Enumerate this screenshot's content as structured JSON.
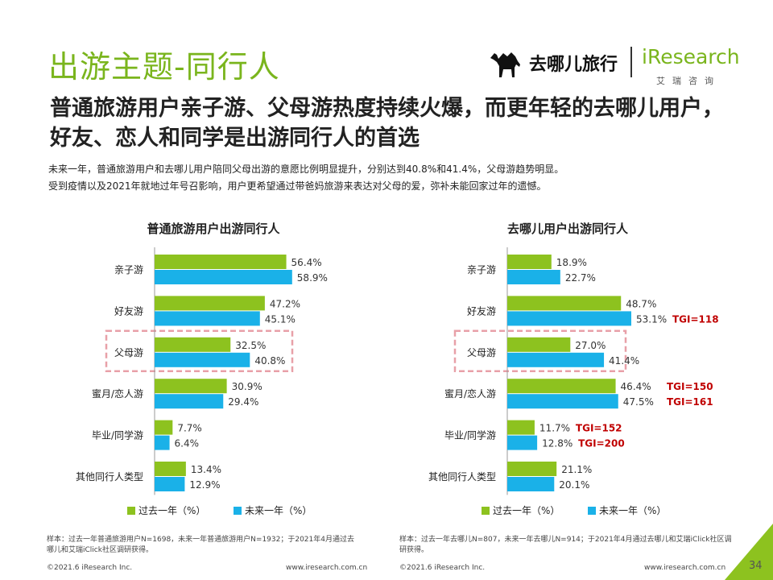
{
  "page_title": "出游主题-同行人",
  "headline": "普通旅游用户亲子游、父母游热度持续火爆，而更年轻的去哪儿用户，好友、恋人和同学是出游同行人的首选",
  "description": [
    "未来一年，普通旅游用户和去哪儿用户陪同父母出游的意愿比例明显提升，分别达到40.8%和41.4%，父母游趋势明显。",
    "受到疫情以及2021年就地过年号召影响，用户更希望通过带爸妈旅游来表达对父母的爱，弥补未能回家过年的遗憾。"
  ],
  "logo": {
    "brand_cn": "去哪儿旅行",
    "brand_en": "iResearch",
    "brand_sub": "艾瑞咨询"
  },
  "colors": {
    "green": "#8dc21f",
    "blue": "#1ab1e8",
    "title_green": "#7ab51d",
    "tgi_red": "#c00000",
    "highlight": "#e8a0a8"
  },
  "chart_data": [
    {
      "type": "bar",
      "title": "普通旅游用户出游同行人",
      "categories": [
        "亲子游",
        "好友游",
        "父母游",
        "蜜月/恋人游",
        "毕业/同学游",
        "其他同行人类型"
      ],
      "series": [
        {
          "name": "过去一年（%）",
          "values": [
            56.4,
            47.2,
            32.5,
            30.9,
            7.7,
            13.4
          ]
        },
        {
          "name": "未来一年（%）",
          "values": [
            58.9,
            45.1,
            40.8,
            29.4,
            6.4,
            12.9
          ]
        }
      ],
      "labels": [
        [
          "56.4%",
          "47.2%",
          "32.5%",
          "30.9%",
          "7.7%",
          "13.4%"
        ],
        [
          "58.9%",
          "45.1%",
          "40.8%",
          "29.4%",
          "6.4%",
          "12.9%"
        ]
      ],
      "tgi": [
        [
          null,
          null,
          null,
          null,
          null,
          null
        ],
        [
          null,
          null,
          null,
          null,
          null,
          null
        ]
      ],
      "highlight_category": "父母游",
      "legend_position": "bottom"
    },
    {
      "type": "bar",
      "title": "去哪儿用户出游同行人",
      "categories": [
        "亲子游",
        "好友游",
        "父母游",
        "蜜月/恋人游",
        "毕业/同学游",
        "其他同行人类型"
      ],
      "series": [
        {
          "name": "过去一年（%）",
          "values": [
            18.9,
            48.7,
            27.0,
            46.4,
            11.7,
            21.1
          ]
        },
        {
          "name": "未来一年（%）",
          "values": [
            22.7,
            53.1,
            41.4,
            47.5,
            12.8,
            20.1
          ]
        }
      ],
      "labels": [
        [
          "18.9%",
          "48.7%",
          "27.0%",
          "46.4%",
          "11.7%",
          "21.1%"
        ],
        [
          "22.7%",
          "53.1%",
          "41.4%",
          "47.5%",
          "12.8%",
          "20.1%"
        ]
      ],
      "tgi": [
        [
          null,
          null,
          null,
          "TGI=150",
          "TGI=152",
          null
        ],
        [
          null,
          "TGI=118",
          null,
          "TGI=161",
          "TGI=200",
          null
        ]
      ],
      "highlight_category": "父母游",
      "legend_position": "bottom"
    }
  ],
  "footnotes": [
    "样本：过去一年普通旅游用户N=1698，未来一年普通旅游用户N=1932；于2021年4月通过去哪儿和艾瑞iClick社区调研获得。",
    "样本：过去一年去哪儿N=807，未来一年去哪儿N=914；于2021年4月通过去哪儿和艾瑞iClick社区调研获得。"
  ],
  "footer": {
    "copyright": "©2021.6 iResearch Inc.",
    "url": "www.iresearch.com.cn"
  },
  "page_number": "34"
}
